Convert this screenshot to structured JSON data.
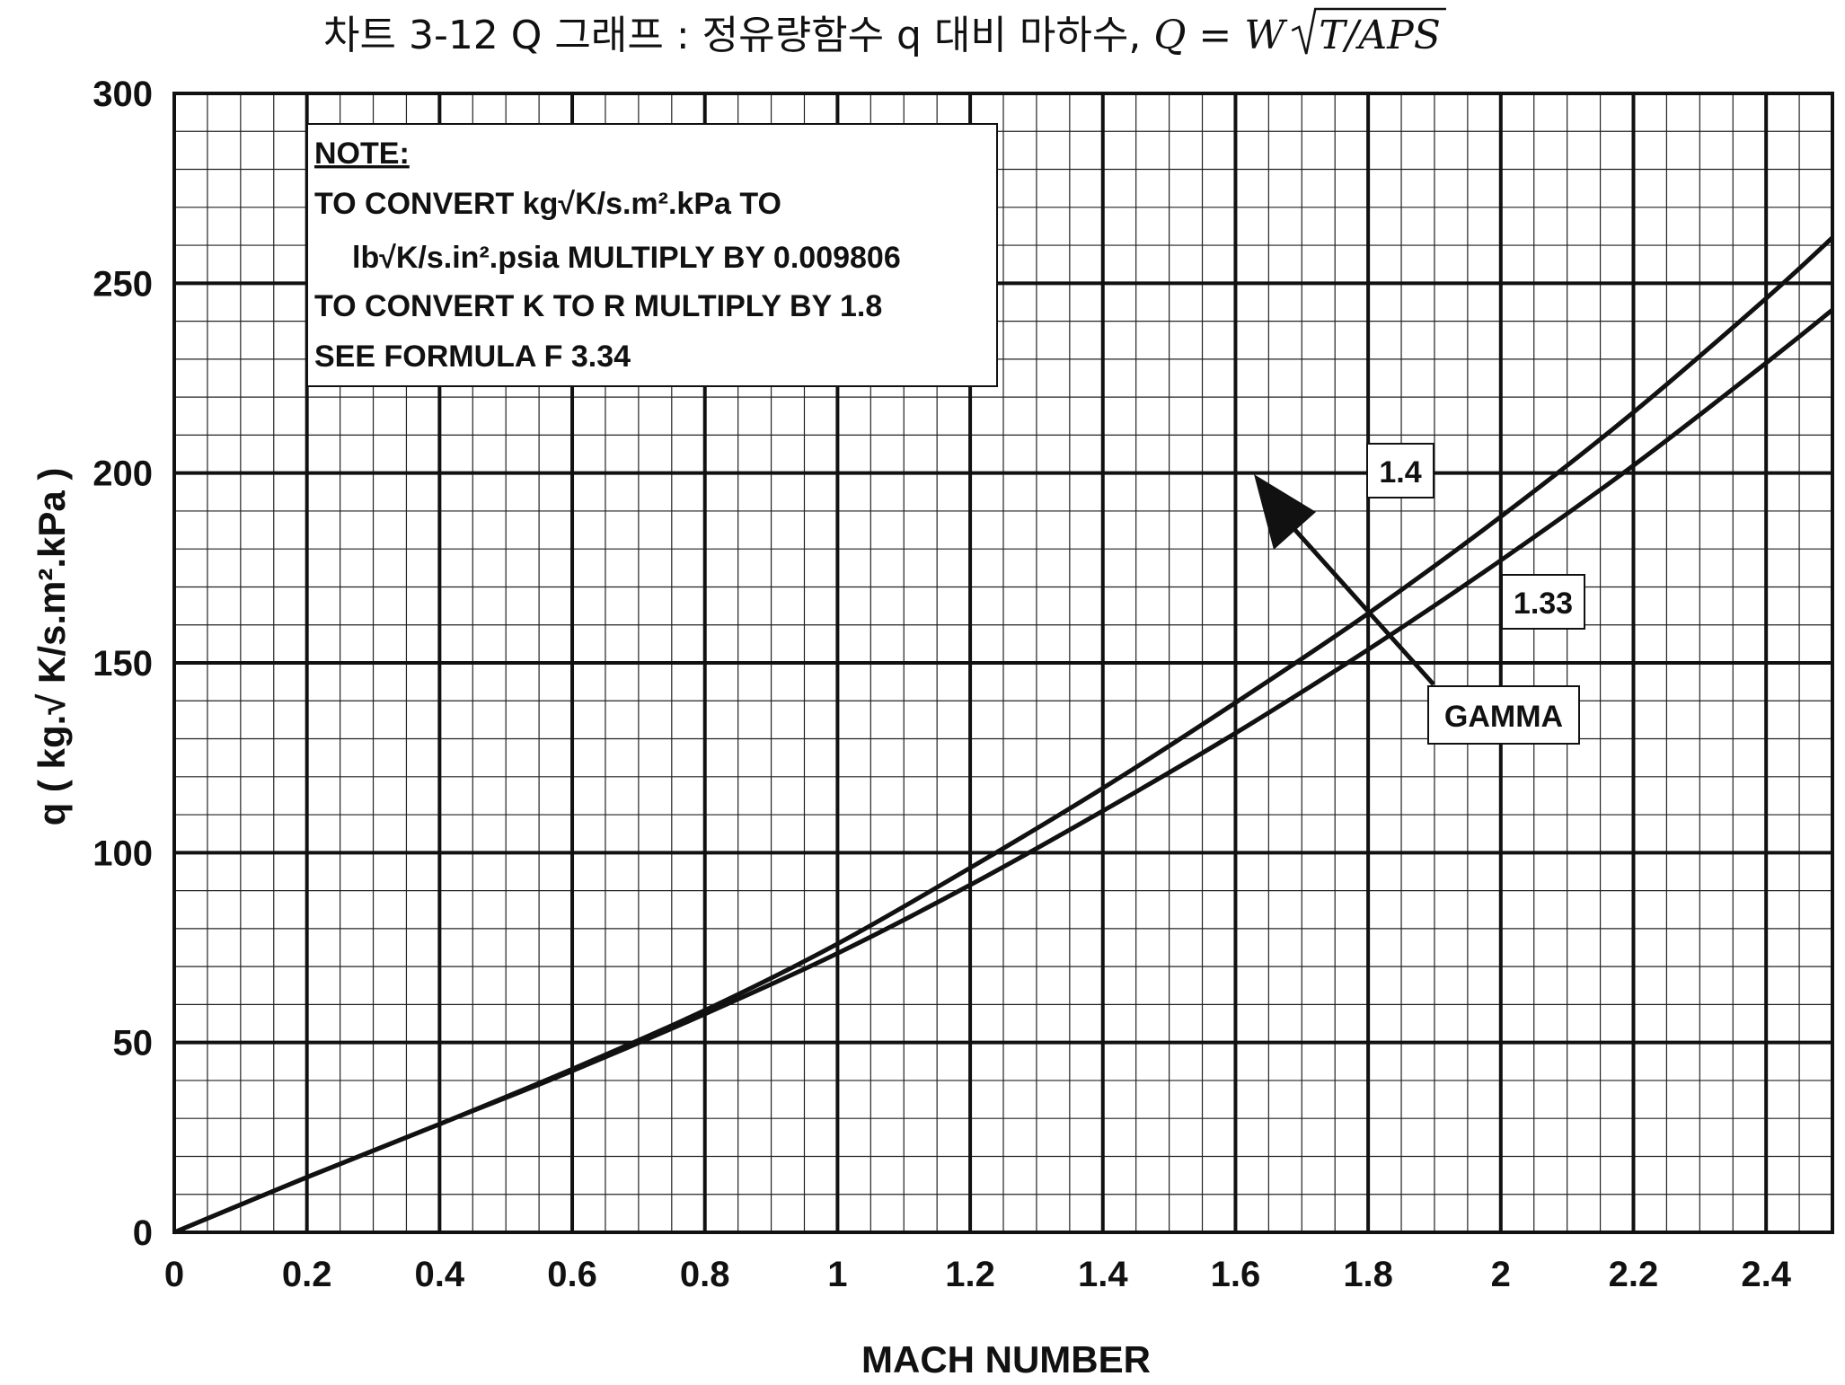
{
  "title": {
    "prefix": "차트 3-12 Q 그래프 : 정유량함수 q 대비 마하수, ",
    "formula_lhs": "Q",
    "formula_eq": " = W",
    "formula_radicand": "T/APS"
  },
  "note": {
    "heading": "NOTE:",
    "line1": "TO CONVERT kg√K/s.m².kPa TO",
    "line2": "lb√K/s.in².psia MULTIPLY BY 0.009806",
    "line3": "TO CONVERT K TO R MULTIPLY BY 1.8",
    "line4": "SEE FORMULA F 3.34"
  },
  "annotations": {
    "label_gamma": "GAMMA",
    "label_14": "1.4",
    "label_133": "1.33"
  },
  "chart_data": {
    "type": "line",
    "title": "차트 3-12 Q 그래프 : 정유량함수 q 대비 마하수, Q = W√(T/APS)",
    "xlabel": "MACH NUMBER",
    "ylabel": "q ( kg.√ K/s.m².kPa )",
    "xlim": [
      0,
      2.5
    ],
    "ylim": [
      0,
      300
    ],
    "x_ticks": [
      0,
      0.2,
      0.4,
      0.6,
      0.8,
      1,
      1.2,
      1.4,
      1.6,
      1.8,
      2,
      2.2,
      2.4
    ],
    "x_tick_labels": [
      "0",
      "0.2",
      "0.4",
      "0.6",
      "0.8",
      "1",
      "1.2",
      "1.4",
      "1.6",
      "1.8",
      "2",
      "2.2",
      "2.4"
    ],
    "y_ticks": [
      0,
      50,
      100,
      150,
      200,
      250,
      300
    ],
    "y_tick_labels": [
      "0",
      "50",
      "100",
      "150",
      "200",
      "250",
      "300"
    ],
    "grid": true,
    "minor_x_step": 0.05,
    "minor_y_step": 10,
    "legend_title": "GAMMA",
    "series": [
      {
        "name": "1.4",
        "x": [
          0,
          0.2,
          0.4,
          0.6,
          0.8,
          1.0,
          1.2,
          1.4,
          1.6,
          1.8,
          2.0,
          2.2,
          2.4,
          2.5
        ],
        "y": [
          0,
          14.5,
          28.5,
          43,
          58.5,
          76,
          96,
          117,
          139.5,
          163,
          188.5,
          216,
          246,
          262
        ]
      },
      {
        "name": "1.33",
        "x": [
          0,
          0.2,
          0.4,
          0.6,
          0.8,
          1.0,
          1.2,
          1.4,
          1.6,
          1.8,
          2.0,
          2.2,
          2.4,
          2.5
        ],
        "y": [
          0,
          14.5,
          28.5,
          42.5,
          57.5,
          73.5,
          91.5,
          111,
          131.5,
          153.5,
          177,
          202,
          229,
          243
        ]
      }
    ]
  }
}
